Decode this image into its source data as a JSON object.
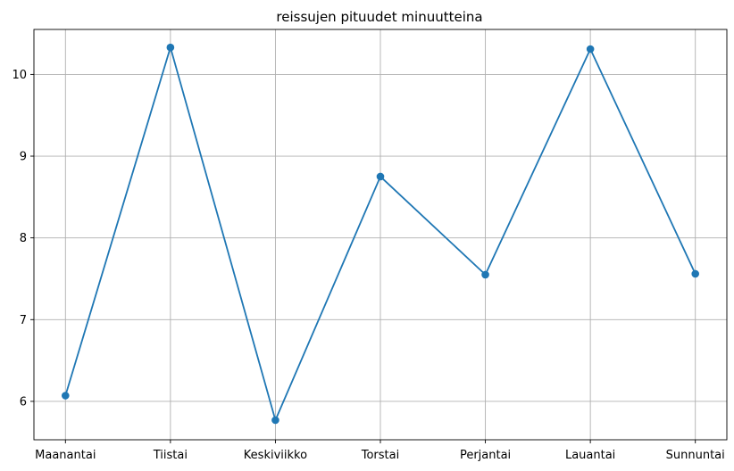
{
  "chart_data": {
    "type": "line",
    "title": "reissujen pituudet minuutteina",
    "xlabel": "",
    "ylabel": "",
    "categories": [
      "Maanantai",
      "Tiistai",
      "Keskiviikko",
      "Torstai",
      "Perjantai",
      "Lauantai",
      "Sunnuntai"
    ],
    "series": [
      {
        "values": [
          6.07,
          10.33,
          5.77,
          8.75,
          7.55,
          10.31,
          7.56
        ],
        "color": "#1f77b4"
      }
    ],
    "ylim": [
      5.53,
      10.55
    ],
    "yticks": [
      6,
      7,
      8,
      9,
      10
    ],
    "grid": true,
    "legend": "none"
  }
}
